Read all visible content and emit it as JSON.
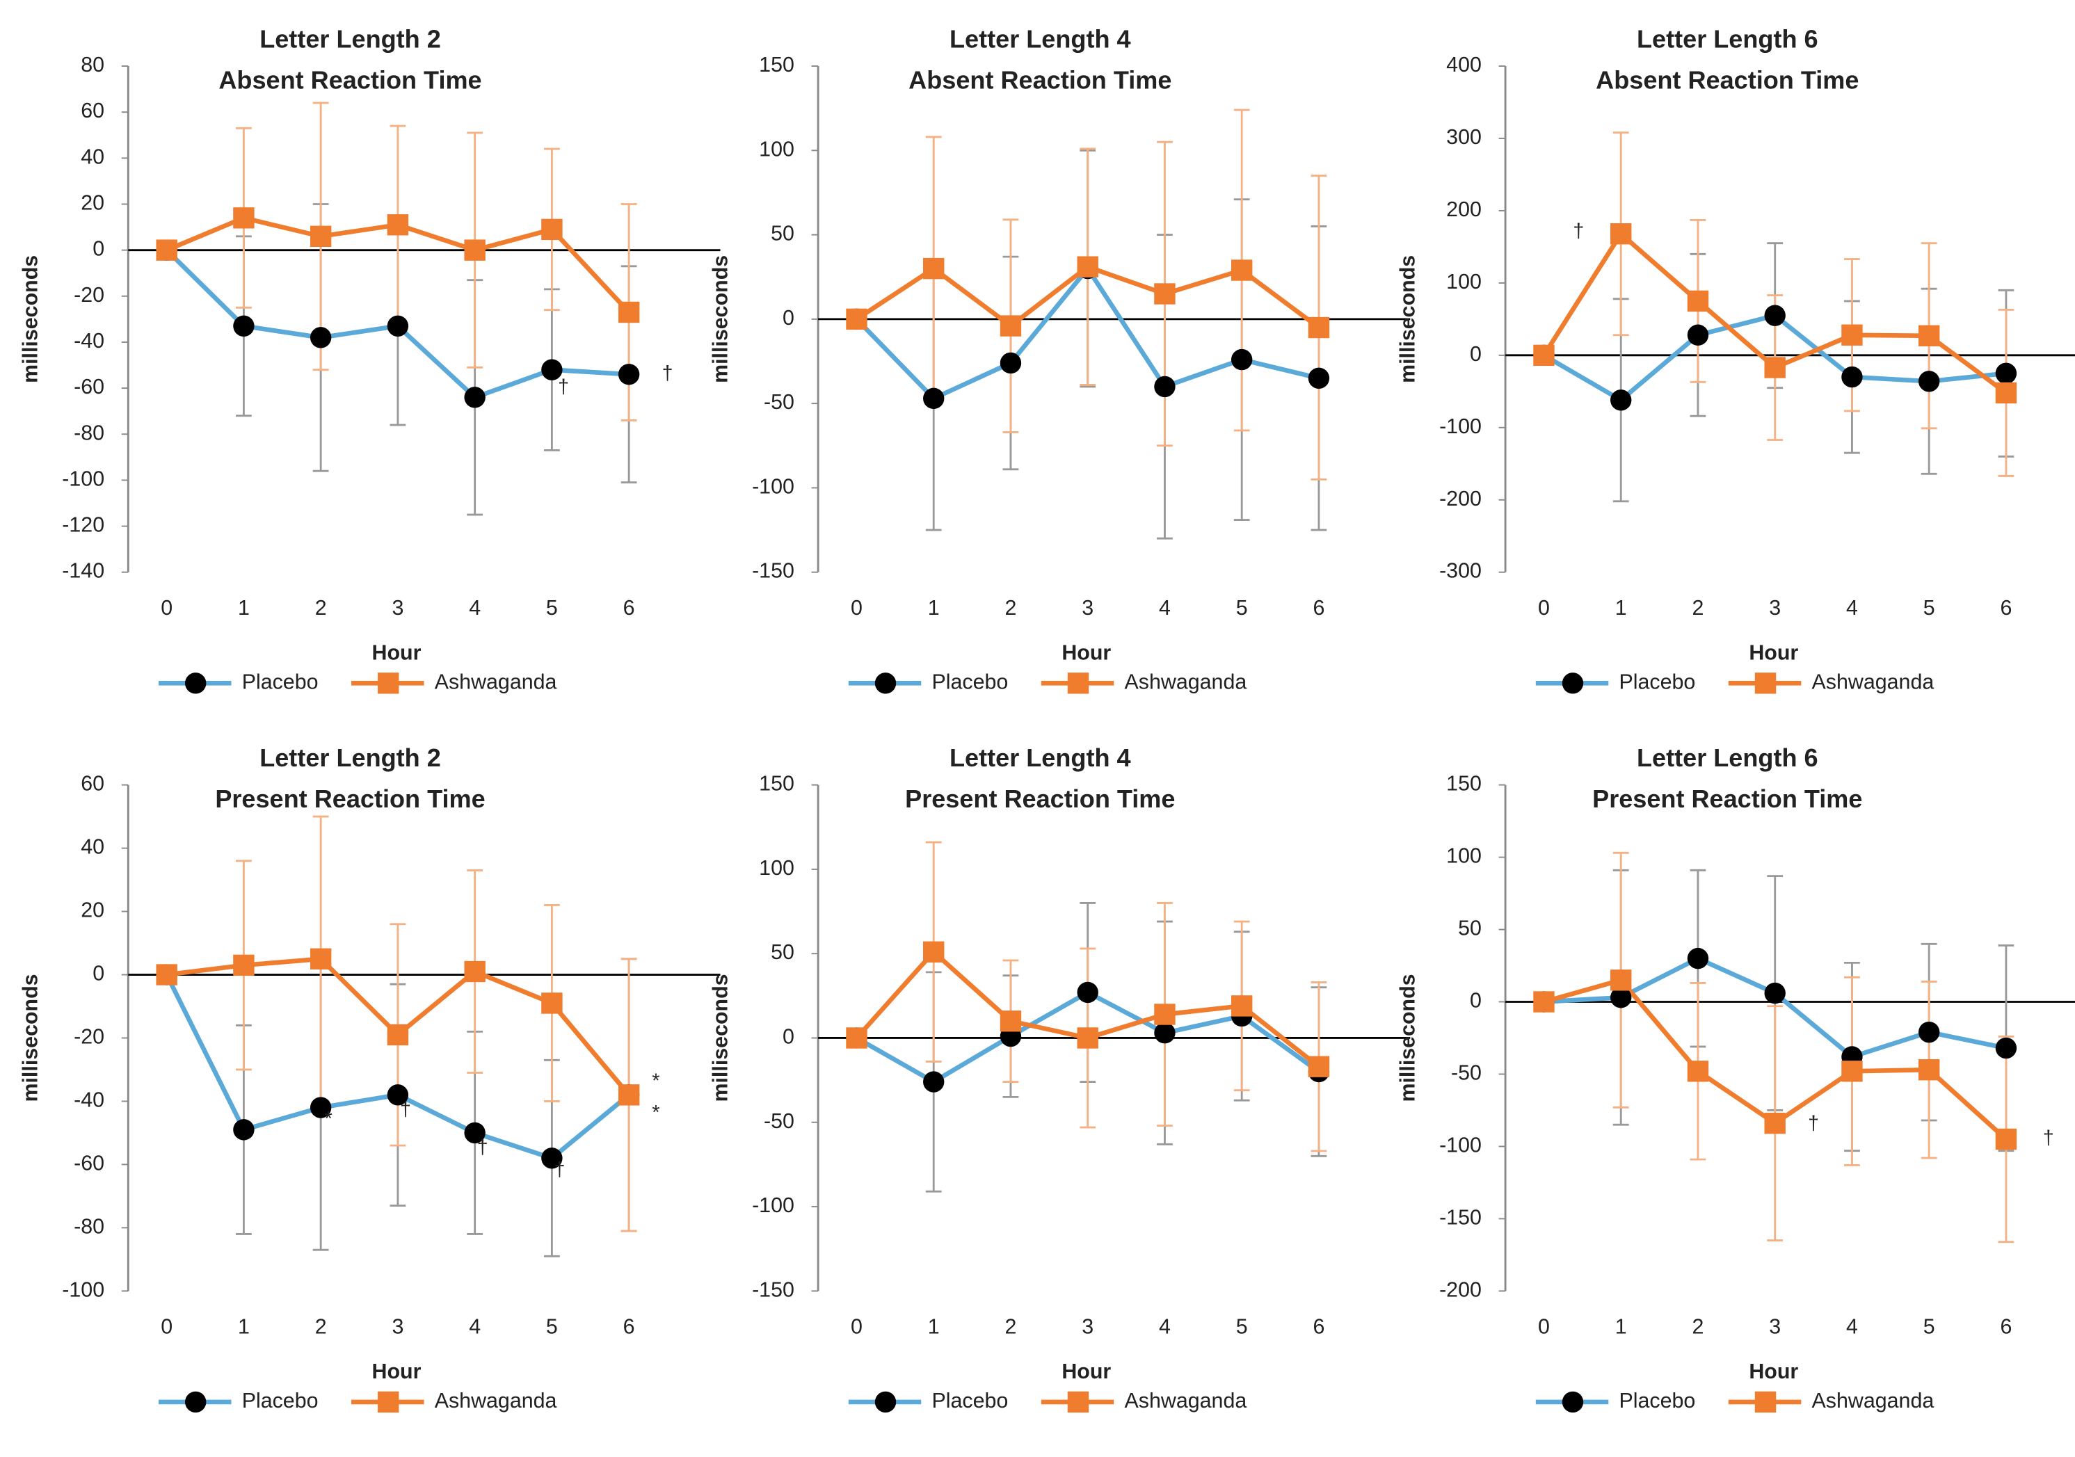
{
  "chart_data": [
    {
      "type": "line",
      "title": "Letter Length 2",
      "subtitle": "Absent Reaction Time",
      "xlabel": "Hour",
      "ylabel": "milliseconds",
      "x": [
        0,
        1,
        2,
        3,
        4,
        5,
        6
      ],
      "xlim": [
        -0.5,
        6.5
      ],
      "ylim": [
        -140,
        80
      ],
      "yticks": [
        -140,
        -120,
        -100,
        -80,
        -60,
        -40,
        -20,
        0,
        20,
        40,
        60,
        80
      ],
      "series": [
        {
          "name": "Placebo",
          "color": "#5aa9d8",
          "marker": "circle",
          "marker_color": "#000000",
          "error_color": "#999999",
          "values": [
            0,
            -33,
            -38,
            -33,
            -64,
            -52,
            -54
          ],
          "errors": [
            0,
            39,
            58,
            43,
            51,
            35,
            47
          ]
        },
        {
          "name": "Ashwaganda",
          "color": "#f07d2e",
          "marker": "square",
          "marker_color": "#f07d2e",
          "error_color": "#f4b183",
          "values": [
            0,
            14,
            6,
            11,
            0,
            9,
            -27
          ],
          "errors": [
            0,
            39,
            58,
            43,
            51,
            35,
            47
          ]
        }
      ],
      "annotations": [
        {
          "text": "†",
          "x": 5.15,
          "y": -60
        },
        {
          "text": "†",
          "x": 6.5,
          "y": -54
        }
      ]
    },
    {
      "type": "line",
      "title": "Letter Length 4",
      "subtitle": "Absent Reaction Time",
      "xlabel": "Hour",
      "ylabel": "milliseconds",
      "x": [
        0,
        1,
        2,
        3,
        4,
        5,
        6
      ],
      "xlim": [
        -0.5,
        6.5
      ],
      "ylim": [
        -150,
        150
      ],
      "yticks": [
        -150,
        -100,
        -50,
        0,
        50,
        100,
        150
      ],
      "series": [
        {
          "name": "Placebo",
          "color": "#5aa9d8",
          "marker": "circle",
          "marker_color": "#000000",
          "error_color": "#999999",
          "values": [
            0,
            -47,
            -26,
            30,
            -40,
            -24,
            -35
          ],
          "errors": [
            0,
            78,
            63,
            70,
            90,
            95,
            90
          ]
        },
        {
          "name": "Ashwaganda",
          "color": "#f07d2e",
          "marker": "square",
          "marker_color": "#f07d2e",
          "error_color": "#f4b183",
          "values": [
            0,
            30,
            -4,
            31,
            15,
            29,
            -5
          ],
          "errors": [
            0,
            78,
            63,
            70,
            90,
            95,
            90
          ]
        }
      ],
      "annotations": []
    },
    {
      "type": "line",
      "title": "Letter Length 6",
      "subtitle": "Absent Reaction Time",
      "xlabel": "Hour",
      "ylabel": "milliseconds",
      "x": [
        0,
        1,
        2,
        3,
        4,
        5,
        6
      ],
      "xlim": [
        -0.5,
        6.5
      ],
      "ylim": [
        -300,
        400
      ],
      "yticks": [
        -300,
        -200,
        -100,
        0,
        100,
        200,
        300,
        400
      ],
      "series": [
        {
          "name": "Placebo",
          "color": "#5aa9d8",
          "marker": "circle",
          "marker_color": "#000000",
          "error_color": "#999999",
          "values": [
            0,
            -62,
            28,
            55,
            -30,
            -36,
            -25
          ],
          "errors": [
            0,
            140,
            112,
            100,
            105,
            128,
            115
          ]
        },
        {
          "name": "Ashwaganda",
          "color": "#f07d2e",
          "marker": "square",
          "marker_color": "#f07d2e",
          "error_color": "#f4b183",
          "values": [
            0,
            168,
            75,
            -17,
            28,
            27,
            -52
          ],
          "errors": [
            0,
            140,
            112,
            100,
            105,
            128,
            115
          ]
        }
      ],
      "annotations": [
        {
          "text": "†",
          "x": 0.45,
          "y": 170
        }
      ]
    },
    {
      "type": "line",
      "title": "Letter Length 2",
      "subtitle": "Present Reaction Time",
      "xlabel": "Hour",
      "ylabel": "milliseconds",
      "x": [
        0,
        1,
        2,
        3,
        4,
        5,
        6
      ],
      "xlim": [
        -0.5,
        6.5
      ],
      "ylim": [
        -100,
        60
      ],
      "yticks": [
        -100,
        -80,
        -60,
        -40,
        -20,
        0,
        20,
        40,
        60
      ],
      "series": [
        {
          "name": "Placebo",
          "color": "#5aa9d8",
          "marker": "circle",
          "marker_color": "#000000",
          "error_color": "#999999",
          "values": [
            0,
            -49,
            -42,
            -38,
            -50,
            -58,
            -38
          ],
          "errors": [
            0,
            33,
            45,
            35,
            32,
            31,
            43
          ]
        },
        {
          "name": "Ashwaganda",
          "color": "#f07d2e",
          "marker": "square",
          "marker_color": "#f07d2e",
          "error_color": "#f4b183",
          "values": [
            0,
            3,
            5,
            -19,
            1,
            -9,
            -38
          ],
          "errors": [
            0,
            33,
            45,
            35,
            32,
            31,
            43
          ]
        }
      ],
      "annotations": [
        {
          "text": "*",
          "x": 2.1,
          "y": -46
        },
        {
          "text": "†",
          "x": 3.1,
          "y": -43
        },
        {
          "text": "†",
          "x": 4.1,
          "y": -55
        },
        {
          "text": "†",
          "x": 5.1,
          "y": -62
        },
        {
          "text": "*",
          "x": 6.35,
          "y": -34
        },
        {
          "text": "*",
          "x": 6.35,
          "y": -44
        }
      ]
    },
    {
      "type": "line",
      "title": "Letter Length 4",
      "subtitle": "Present Reaction Time",
      "xlabel": "Hour",
      "ylabel": "milliseconds",
      "x": [
        0,
        1,
        2,
        3,
        4,
        5,
        6
      ],
      "xlim": [
        -0.5,
        6.5
      ],
      "ylim": [
        -150,
        150
      ],
      "yticks": [
        -150,
        -100,
        -50,
        0,
        50,
        100,
        150
      ],
      "series": [
        {
          "name": "Placebo",
          "color": "#5aa9d8",
          "marker": "circle",
          "marker_color": "#000000",
          "error_color": "#999999",
          "values": [
            0,
            -26,
            1,
            27,
            3,
            13,
            -20
          ],
          "errors": [
            0,
            65,
            36,
            53,
            66,
            50,
            50
          ]
        },
        {
          "name": "Ashwaganda",
          "color": "#f07d2e",
          "marker": "square",
          "marker_color": "#f07d2e",
          "error_color": "#f4b183",
          "values": [
            0,
            51,
            10,
            0,
            14,
            19,
            -17
          ],
          "errors": [
            0,
            65,
            36,
            53,
            66,
            50,
            50
          ]
        }
      ],
      "annotations": []
    },
    {
      "type": "line",
      "title": "Letter Length 6",
      "subtitle": "Present Reaction Time",
      "xlabel": "Hour",
      "ylabel": "milliseconds",
      "x": [
        0,
        1,
        2,
        3,
        4,
        5,
        6
      ],
      "xlim": [
        -0.5,
        6.5
      ],
      "ylim": [
        -200,
        150
      ],
      "yticks": [
        -200,
        -150,
        -100,
        -50,
        0,
        50,
        100,
        150
      ],
      "series": [
        {
          "name": "Placebo",
          "color": "#5aa9d8",
          "marker": "circle",
          "marker_color": "#000000",
          "error_color": "#999999",
          "values": [
            0,
            3,
            30,
            6,
            -38,
            -21,
            -32
          ],
          "errors": [
            0,
            88,
            61,
            81,
            65,
            61,
            71
          ]
        },
        {
          "name": "Ashwaganda",
          "color": "#f07d2e",
          "marker": "square",
          "marker_color": "#f07d2e",
          "error_color": "#f4b183",
          "values": [
            0,
            15,
            -48,
            -84,
            -48,
            -47,
            -95
          ],
          "errors": [
            0,
            88,
            61,
            81,
            65,
            61,
            71
          ]
        }
      ],
      "annotations": [
        {
          "text": "†",
          "x": 3.5,
          "y": -85
        },
        {
          "text": "†",
          "x": 6.55,
          "y": -95
        }
      ]
    }
  ]
}
